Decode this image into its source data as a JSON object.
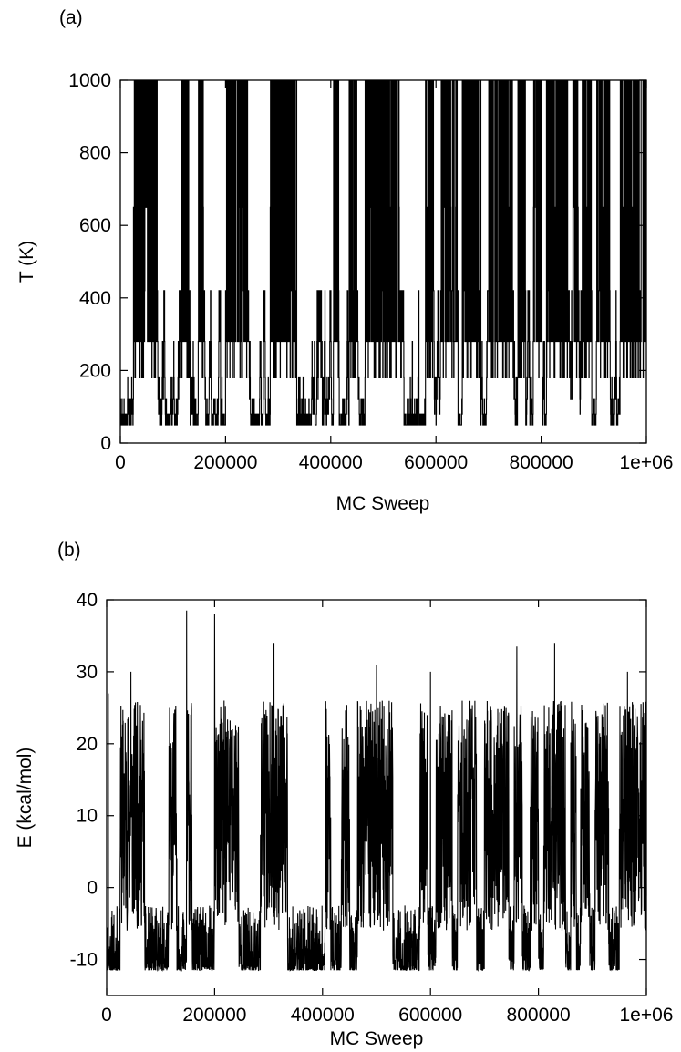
{
  "chart_data": [
    {
      "panel_label": "(a)",
      "type": "line",
      "xlabel": "MC Sweep",
      "ylabel": "T (K)",
      "xlim": [
        0,
        1000000
      ],
      "ylim": [
        0,
        1000
      ],
      "x_ticks": [
        "0",
        "200000",
        "400000",
        "600000",
        "800000",
        "1e+06"
      ],
      "y_ticks": [
        "0",
        "200",
        "400",
        "600",
        "800",
        "1000"
      ],
      "grid": false,
      "temperature_levels": [
        50,
        80,
        120,
        180,
        280,
        420,
        650,
        1000
      ],
      "high_T_bursts": [
        [
          25000,
          70000
        ],
        [
          115000,
          130000
        ],
        [
          148000,
          158000
        ],
        [
          200000,
          245000
        ],
        [
          285000,
          335000
        ],
        [
          405000,
          415000
        ],
        [
          435000,
          450000
        ],
        [
          465000,
          530000
        ],
        [
          580000,
          595000
        ],
        [
          610000,
          640000
        ],
        [
          650000,
          685000
        ],
        [
          700000,
          745000
        ],
        [
          755000,
          770000
        ],
        [
          785000,
          800000
        ],
        [
          810000,
          850000
        ],
        [
          860000,
          870000
        ],
        [
          878000,
          895000
        ],
        [
          905000,
          930000
        ],
        [
          950000,
          1000000
        ]
      ]
    },
    {
      "panel_label": "(b)",
      "type": "line",
      "xlabel": "MC Sweep",
      "ylabel": "E (kcal/mol)",
      "xlim": [
        0,
        1000000
      ],
      "ylim": [
        -15,
        40
      ],
      "x_ticks": [
        "0",
        "200000",
        "400000",
        "600000",
        "800000",
        "1e+06"
      ],
      "y_ticks": [
        "-10",
        "0",
        "10",
        "20",
        "30",
        "40"
      ],
      "grid": false,
      "baseline_energy": -11.5,
      "high_E_bursts": [
        [
          25000,
          70000
        ],
        [
          115000,
          130000
        ],
        [
          148000,
          158000
        ],
        [
          200000,
          245000
        ],
        [
          285000,
          335000
        ],
        [
          405000,
          415000
        ],
        [
          435000,
          450000
        ],
        [
          465000,
          530000
        ],
        [
          580000,
          595000
        ],
        [
          610000,
          640000
        ],
        [
          650000,
          685000
        ],
        [
          700000,
          745000
        ],
        [
          755000,
          770000
        ],
        [
          785000,
          800000
        ],
        [
          810000,
          850000
        ],
        [
          860000,
          870000
        ],
        [
          878000,
          895000
        ],
        [
          905000,
          930000
        ],
        [
          950000,
          1000000
        ]
      ],
      "peaks": [
        [
          3000,
          27
        ],
        [
          45000,
          30
        ],
        [
          148000,
          38.5
        ],
        [
          200000,
          38
        ],
        [
          310000,
          34
        ],
        [
          500000,
          31
        ],
        [
          600000,
          30
        ],
        [
          760000,
          33.5
        ],
        [
          830000,
          34
        ],
        [
          965000,
          30
        ]
      ]
    }
  ]
}
